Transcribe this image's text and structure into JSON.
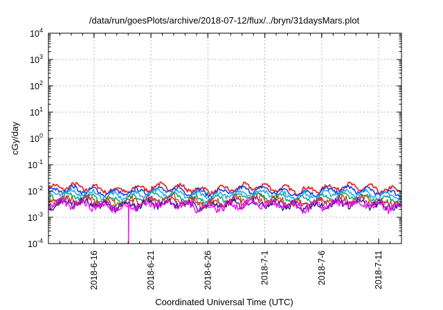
{
  "chart_data": {
    "type": "line",
    "title": "/data/run/goesPlots/archive/2018-07-12/flux/../bryn/31daysMars.plot",
    "xlabel": "Coordinated Universal Time (UTC)",
    "ylabel": "cGy/day",
    "y_scale": "log",
    "ylim": [
      0.0001,
      10000
    ],
    "y_ticks": [
      {
        "base": "10",
        "exp": "-4",
        "value": 0.0001
      },
      {
        "base": "10",
        "exp": "-3",
        "value": 0.001
      },
      {
        "base": "10",
        "exp": "-2",
        "value": 0.01
      },
      {
        "base": "10",
        "exp": "-1",
        "value": 0.1
      },
      {
        "base": "10",
        "exp": "0",
        "value": 1
      },
      {
        "base": "10",
        "exp": "1",
        "value": 10
      },
      {
        "base": "10",
        "exp": "2",
        "value": 100
      },
      {
        "base": "10",
        "exp": "3",
        "value": 1000
      },
      {
        "base": "10",
        "exp": "4",
        "value": 10000
      }
    ],
    "xlim": [
      "2018-06-12",
      "2018-07-13"
    ],
    "x_ticks": [
      "2018-6-16",
      "2018-6-21",
      "2018-6-26",
      "2018-7-1",
      "2018-7-6",
      "2018-7-11"
    ],
    "grid": true,
    "legend": "none",
    "series": [
      {
        "color": "#ee1111",
        "level": 0.0125,
        "x": [
          "2018-06-12",
          "2018-07-13"
        ],
        "y": [
          0.0125,
          0.0125
        ]
      },
      {
        "color": "#1144ee",
        "level": 0.0098,
        "x": [
          "2018-06-12",
          "2018-07-13"
        ],
        "y": [
          0.0098,
          0.0098
        ]
      },
      {
        "color": "#22aaee",
        "level": 0.0075,
        "x": [
          "2018-06-12",
          "2018-07-13"
        ],
        "y": [
          0.0075,
          0.0075
        ]
      },
      {
        "color": "#11aa88",
        "level": 0.0055,
        "x": [
          "2018-06-12",
          "2018-07-13"
        ],
        "y": [
          0.0055,
          0.0055
        ]
      },
      {
        "color": "#aa5500",
        "level": 0.0042,
        "x": [
          "2018-06-12",
          "2018-07-13"
        ],
        "y": [
          0.0042,
          0.0042
        ]
      },
      {
        "color": "#cc2288",
        "level": 0.0036,
        "x": [
          "2018-06-12",
          "2018-07-13"
        ],
        "y": [
          0.0036,
          0.0036
        ]
      },
      {
        "color": "#222288",
        "level": 0.003,
        "x": [
          "2018-06-12",
          "2018-07-13"
        ],
        "y": [
          0.003,
          0.003
        ]
      },
      {
        "color": "#ff00ff",
        "level": 0.0028,
        "x": [
          "2018-06-12",
          "2018-07-13"
        ],
        "y": [
          0.0028,
          0.0028
        ]
      }
    ],
    "dropout": {
      "x": "2018-06-19",
      "y_min": 0.0001
    }
  }
}
